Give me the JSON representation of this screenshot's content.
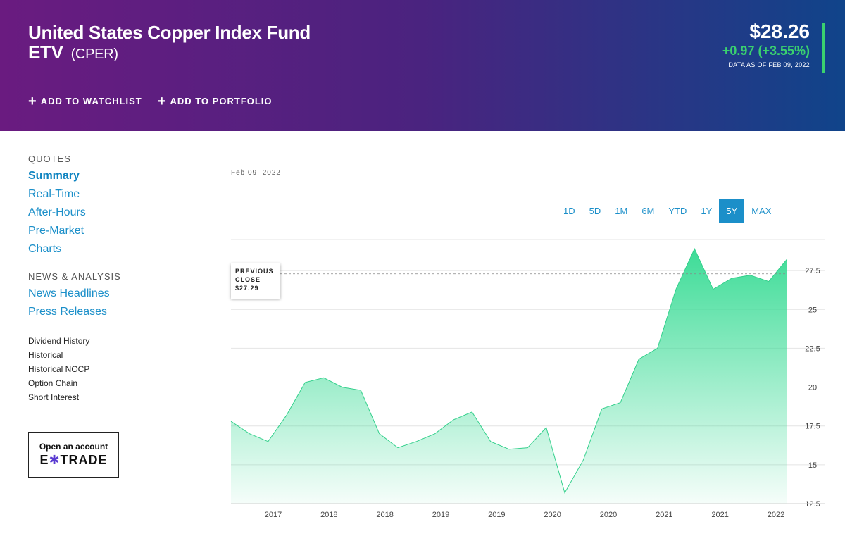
{
  "header": {
    "title_line1": "United States Copper Index Fund",
    "title_line2": "ETV",
    "ticker": "(CPER)",
    "price": "$28.26",
    "change": "+0.97 (+3.55%)",
    "as_of": "DATA AS OF FEB 09, 2022",
    "add_watchlist": "ADD TO WATCHLIST",
    "add_portfolio": "ADD TO PORTFOLIO",
    "change_color": "#3ad16f"
  },
  "sidebar": {
    "quotes_heading": "QUOTES",
    "quotes_links": [
      "Summary",
      "Real-Time",
      "After-Hours",
      "Pre-Market",
      "Charts"
    ],
    "news_heading": "NEWS & ANALYSIS",
    "news_links": [
      "News Headlines",
      "Press Releases"
    ],
    "small_links": [
      "Dividend History",
      "Historical",
      "Historical NOCP",
      "Option Chain",
      "Short Interest"
    ],
    "promo_text": "Open an account",
    "promo_logo": "E*TRADE"
  },
  "chart": {
    "date_label": "Feb 09, 2022",
    "ranges": [
      "1D",
      "5D",
      "1M",
      "6M",
      "YTD",
      "1Y",
      "5Y",
      "MAX"
    ],
    "active_range": "5Y",
    "tooltip": {
      "line1": "PREVIOUS",
      "line2": "CLOSE",
      "value": "$27.29"
    }
  },
  "chart_data": {
    "type": "area",
    "title": "",
    "xlabel": "",
    "ylabel": "",
    "ylim": [
      12.5,
      29.5
    ],
    "y_ticks": [
      "27.5",
      "25",
      "22.5",
      "20",
      "17.5",
      "15",
      "12.5"
    ],
    "x_tick_labels": [
      "2017",
      "2018",
      "2018",
      "2019",
      "2019",
      "2020",
      "2020",
      "2021",
      "2021",
      "2022"
    ],
    "previous_close": 27.29,
    "grid": true,
    "color": "#3ddc97",
    "series": [
      {
        "x": [
          "2017-03",
          "2017-05",
          "2017-07",
          "2017-09",
          "2017-11",
          "2018-01",
          "2018-03",
          "2018-05",
          "2018-07",
          "2018-09",
          "2018-11",
          "2019-01",
          "2019-03",
          "2019-05",
          "2019-07",
          "2019-09",
          "2019-11",
          "2020-01",
          "2020-03",
          "2020-05",
          "2020-07",
          "2020-09",
          "2020-11",
          "2021-01",
          "2021-03",
          "2021-05",
          "2021-07",
          "2021-09",
          "2021-11",
          "2022-01",
          "2022-02"
        ],
        "values": [
          17.8,
          17.0,
          16.5,
          18.2,
          20.3,
          20.6,
          20.0,
          19.8,
          17.0,
          16.1,
          16.5,
          17.0,
          17.9,
          18.4,
          16.5,
          16.0,
          16.1,
          17.4,
          13.2,
          15.3,
          18.6,
          19.0,
          21.8,
          22.5,
          26.3,
          28.9,
          26.3,
          27.0,
          27.2,
          26.8,
          28.26
        ]
      }
    ]
  }
}
